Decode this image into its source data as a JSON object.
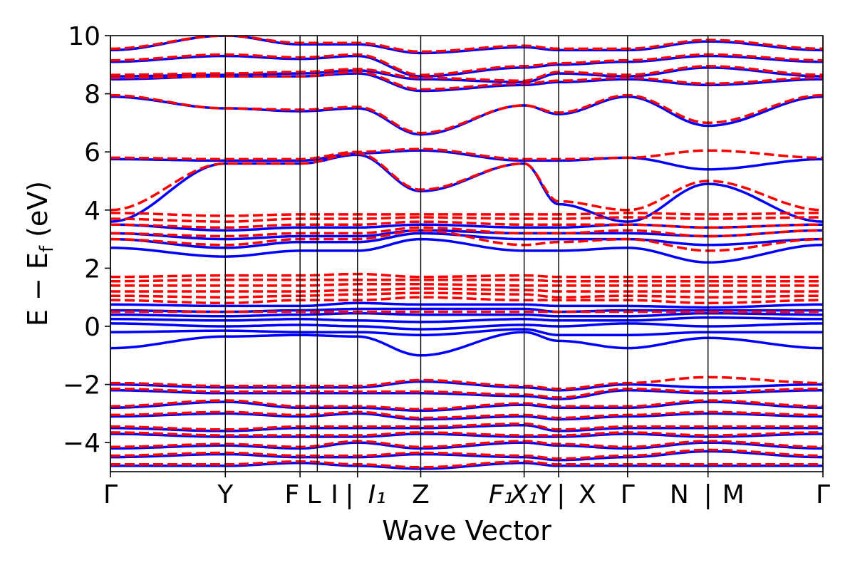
{
  "chart_data": {
    "type": "line",
    "title": "",
    "xlabel": "Wave Vector",
    "ylabel": "E − E_f (eV)",
    "ylabel_main": "E − E",
    "ylabel_sub": "f",
    "ylabel_unit": " (eV)",
    "ylim": [
      -5,
      10
    ],
    "y_ticks": [
      -4,
      -2,
      0,
      2,
      4,
      6,
      8,
      10
    ],
    "grid": false,
    "legend": "none",
    "colors": {
      "series_a": "#0000ff",
      "series_b": "#ff0000",
      "axes": "#000000"
    },
    "kpath": {
      "ticks": [
        {
          "label": "Γ",
          "x": 0.0
        },
        {
          "label": "Y",
          "x": 1.0
        },
        {
          "label": "F|L",
          "x": 1.65
        },
        {
          "label": "I|I₁",
          "x": 2.15
        },
        {
          "label": "Z",
          "x": 2.7
        },
        {
          "label": "F₁|X₁",
          "x": 3.6
        },
        {
          "label": "Y|X",
          "x": 3.9
        },
        {
          "label": "Γ",
          "x": 4.5
        },
        {
          "label": "N|M",
          "x": 5.2
        },
        {
          "label": "Γ",
          "x": 6.2
        }
      ],
      "extra_lines": [
        1.8
      ],
      "xlim": [
        0,
        6.2
      ]
    },
    "tick_labels": [
      {
        "text": "Γ",
        "x": 0.0
      },
      {
        "text": "Y",
        "x": 1.0
      },
      {
        "text": "F",
        "x": 1.58
      },
      {
        "text": "L",
        "x": 1.77
      },
      {
        "text": "I",
        "x": 1.95
      },
      {
        "text": "|",
        "x": 2.08
      },
      {
        "text": "I₁",
        "x": 2.32
      },
      {
        "text": "Z",
        "x": 2.7
      },
      {
        "text": "F₁",
        "x": 3.4
      },
      {
        "text": "X₁",
        "x": 3.6
      },
      {
        "text": "Y",
        "x": 3.77
      },
      {
        "text": "|",
        "x": 3.92
      },
      {
        "text": "X",
        "x": 4.15
      },
      {
        "text": "Γ",
        "x": 4.5
      },
      {
        "text": "N",
        "x": 4.95
      },
      {
        "text": "|",
        "x": 5.2
      },
      {
        "text": "M",
        "x": 5.42
      },
      {
        "text": "Γ",
        "x": 6.2
      }
    ],
    "series": [
      {
        "name": "",
        "style": "solid",
        "color": "#0000ff",
        "band_energies_at_ticks": [
          [
            -0.75,
            -0.35,
            -0.3,
            -0.35,
            -1.0,
            -0.2,
            -0.5,
            -0.75,
            -0.4,
            -0.75
          ],
          [
            -0.2,
            -0.15,
            -0.2,
            -0.2,
            -0.3,
            -0.1,
            -0.3,
            -0.3,
            -0.2,
            -0.2
          ],
          [
            0.1,
            0.0,
            0.05,
            0.0,
            -0.1,
            0.05,
            0.0,
            0.1,
            0.0,
            0.1
          ],
          [
            0.25,
            0.2,
            0.25,
            0.2,
            0.15,
            0.25,
            0.2,
            0.2,
            0.3,
            0.25
          ],
          [
            0.4,
            0.35,
            0.4,
            0.45,
            0.4,
            0.4,
            0.35,
            0.35,
            0.45,
            0.4
          ],
          [
            0.55,
            0.5,
            0.55,
            0.6,
            0.6,
            0.6,
            0.5,
            0.55,
            0.55,
            0.55
          ],
          [
            0.75,
            0.7,
            0.7,
            0.8,
            0.75,
            0.75,
            0.7,
            0.7,
            0.65,
            0.75
          ],
          [
            2.7,
            2.4,
            2.6,
            2.6,
            3.0,
            2.6,
            2.6,
            2.7,
            2.2,
            2.8
          ],
          [
            3.0,
            2.7,
            2.9,
            2.9,
            3.2,
            3.0,
            3.0,
            3.0,
            2.8,
            3.0
          ],
          [
            3.2,
            3.0,
            3.1,
            3.1,
            3.3,
            3.2,
            3.2,
            3.2,
            3.1,
            3.3
          ],
          [
            3.5,
            3.3,
            3.4,
            3.4,
            3.5,
            3.4,
            3.4,
            3.5,
            3.4,
            3.5
          ],
          [
            3.6,
            5.6,
            5.6,
            5.9,
            4.65,
            5.6,
            4.2,
            3.6,
            4.9,
            3.6
          ],
          [
            5.75,
            5.7,
            5.7,
            5.95,
            6.05,
            5.7,
            5.7,
            5.8,
            5.4,
            5.75
          ],
          [
            7.9,
            7.5,
            7.4,
            7.5,
            6.6,
            7.6,
            7.3,
            7.9,
            6.9,
            7.9
          ],
          [
            8.5,
            8.6,
            8.6,
            8.7,
            8.1,
            8.3,
            8.4,
            8.5,
            8.3,
            8.5
          ],
          [
            8.6,
            8.65,
            8.7,
            8.8,
            8.5,
            8.4,
            8.7,
            8.6,
            8.9,
            8.6
          ],
          [
            9.1,
            9.3,
            9.2,
            9.3,
            8.6,
            8.9,
            9.0,
            9.1,
            9.3,
            9.1
          ],
          [
            9.5,
            10.0,
            9.7,
            9.7,
            9.4,
            9.6,
            9.5,
            9.5,
            9.8,
            9.5
          ],
          [
            -2.0,
            -2.1,
            -2.1,
            -2.1,
            -1.9,
            -2.1,
            -2.2,
            -2.0,
            -2.1,
            -2.0
          ],
          [
            -2.2,
            -2.3,
            -2.3,
            -2.3,
            -2.3,
            -2.4,
            -2.5,
            -2.2,
            -2.3,
            -2.2
          ],
          [
            -2.8,
            -2.6,
            -2.8,
            -2.8,
            -2.9,
            -2.7,
            -2.8,
            -2.8,
            -2.6,
            -2.8
          ],
          [
            -3.1,
            -3.0,
            -3.1,
            -3.0,
            -3.2,
            -3.1,
            -3.2,
            -3.1,
            -3.0,
            -3.1
          ],
          [
            -3.5,
            -3.6,
            -3.5,
            -3.5,
            -3.5,
            -3.4,
            -3.6,
            -3.5,
            -3.5,
            -3.5
          ],
          [
            -3.7,
            -3.8,
            -3.8,
            -3.8,
            -3.7,
            -3.8,
            -3.8,
            -3.7,
            -3.8,
            -3.7
          ],
          [
            -4.2,
            -4.1,
            -4.2,
            -4.0,
            -4.2,
            -4.0,
            -4.1,
            -4.2,
            -4.0,
            -4.2
          ],
          [
            -4.5,
            -4.4,
            -4.5,
            -4.5,
            -4.4,
            -4.5,
            -4.6,
            -4.5,
            -4.3,
            -4.5
          ],
          [
            -4.8,
            -4.8,
            -4.7,
            -4.8,
            -4.9,
            -4.7,
            -4.8,
            -4.8,
            -4.8,
            -4.8
          ]
        ]
      },
      {
        "name": "",
        "style": "dashed",
        "color": "#ff0000",
        "band_energies_at_ticks": [
          [
            0.5,
            0.5,
            0.5,
            0.5,
            0.5,
            0.5,
            0.5,
            0.5,
            0.5,
            0.5
          ],
          [
            0.9,
            0.8,
            0.9,
            0.9,
            1.0,
            0.9,
            0.9,
            0.9,
            0.8,
            0.9
          ],
          [
            1.05,
            1.0,
            1.05,
            1.1,
            1.15,
            1.1,
            1.0,
            1.05,
            1.0,
            1.05
          ],
          [
            1.2,
            1.2,
            1.2,
            1.25,
            1.3,
            1.25,
            1.2,
            1.2,
            1.2,
            1.2
          ],
          [
            1.4,
            1.4,
            1.4,
            1.45,
            1.45,
            1.4,
            1.4,
            1.4,
            1.4,
            1.4
          ],
          [
            1.55,
            1.6,
            1.6,
            1.6,
            1.6,
            1.6,
            1.55,
            1.55,
            1.55,
            1.55
          ],
          [
            1.7,
            1.75,
            1.75,
            1.8,
            1.7,
            1.75,
            1.7,
            1.7,
            1.7,
            1.7
          ],
          [
            3.0,
            2.8,
            3.0,
            3.0,
            3.3,
            2.8,
            2.9,
            3.0,
            2.6,
            3.0
          ],
          [
            3.2,
            3.1,
            3.2,
            3.2,
            3.4,
            3.2,
            3.2,
            3.3,
            3.1,
            3.3
          ],
          [
            3.5,
            3.4,
            3.5,
            3.5,
            3.6,
            3.5,
            3.5,
            3.5,
            3.4,
            3.5
          ],
          [
            3.7,
            3.6,
            3.7,
            3.7,
            3.75,
            3.7,
            3.7,
            3.75,
            3.7,
            3.75
          ],
          [
            3.9,
            3.8,
            3.85,
            3.85,
            3.85,
            3.85,
            3.85,
            3.9,
            3.85,
            3.9
          ],
          [
            4.0,
            5.6,
            5.6,
            5.95,
            4.7,
            5.6,
            4.3,
            4.0,
            5.0,
            4.0
          ],
          [
            5.8,
            5.75,
            5.75,
            6.0,
            6.1,
            5.75,
            5.75,
            5.8,
            6.05,
            5.8
          ],
          [
            7.95,
            7.5,
            7.45,
            7.55,
            6.65,
            7.6,
            7.35,
            7.95,
            7.0,
            7.95
          ],
          [
            8.55,
            8.6,
            8.6,
            8.75,
            8.15,
            8.35,
            8.45,
            8.55,
            8.35,
            8.55
          ],
          [
            8.65,
            8.7,
            8.75,
            8.85,
            8.55,
            8.45,
            8.75,
            8.65,
            8.95,
            8.65
          ],
          [
            9.15,
            9.35,
            9.25,
            9.35,
            8.65,
            8.95,
            9.05,
            9.15,
            9.35,
            9.15
          ],
          [
            9.55,
            10.0,
            9.75,
            9.75,
            9.45,
            9.65,
            9.55,
            9.55,
            9.85,
            9.55
          ],
          [
            -1.95,
            -2.05,
            -2.05,
            -2.05,
            -1.85,
            -2.05,
            -2.15,
            -1.95,
            -1.75,
            -1.95
          ],
          [
            -2.15,
            -2.25,
            -2.25,
            -2.25,
            -2.25,
            -2.35,
            -2.45,
            -2.15,
            -2.25,
            -2.15
          ],
          [
            -2.75,
            -2.55,
            -2.75,
            -2.75,
            -2.85,
            -2.65,
            -2.75,
            -2.75,
            -2.55,
            -2.75
          ],
          [
            -3.05,
            -2.95,
            -3.05,
            -2.95,
            -3.15,
            -3.05,
            -3.15,
            -3.05,
            -2.95,
            -3.05
          ],
          [
            -3.45,
            -3.55,
            -3.45,
            -3.45,
            -3.45,
            -3.35,
            -3.55,
            -3.45,
            -3.45,
            -3.45
          ],
          [
            -3.65,
            -3.75,
            -3.75,
            -3.75,
            -3.65,
            -3.75,
            -3.75,
            -3.65,
            -3.75,
            -3.65
          ],
          [
            -4.15,
            -4.05,
            -4.15,
            -3.95,
            -4.15,
            -3.95,
            -4.05,
            -4.15,
            -3.95,
            -4.15
          ],
          [
            -4.45,
            -4.35,
            -4.45,
            -4.45,
            -4.35,
            -4.45,
            -4.55,
            -4.45,
            -4.25,
            -4.45
          ],
          [
            -4.75,
            -4.75,
            -4.65,
            -4.75,
            -4.85,
            -4.65,
            -4.75,
            -4.75,
            -4.75,
            -4.75
          ]
        ]
      }
    ]
  }
}
